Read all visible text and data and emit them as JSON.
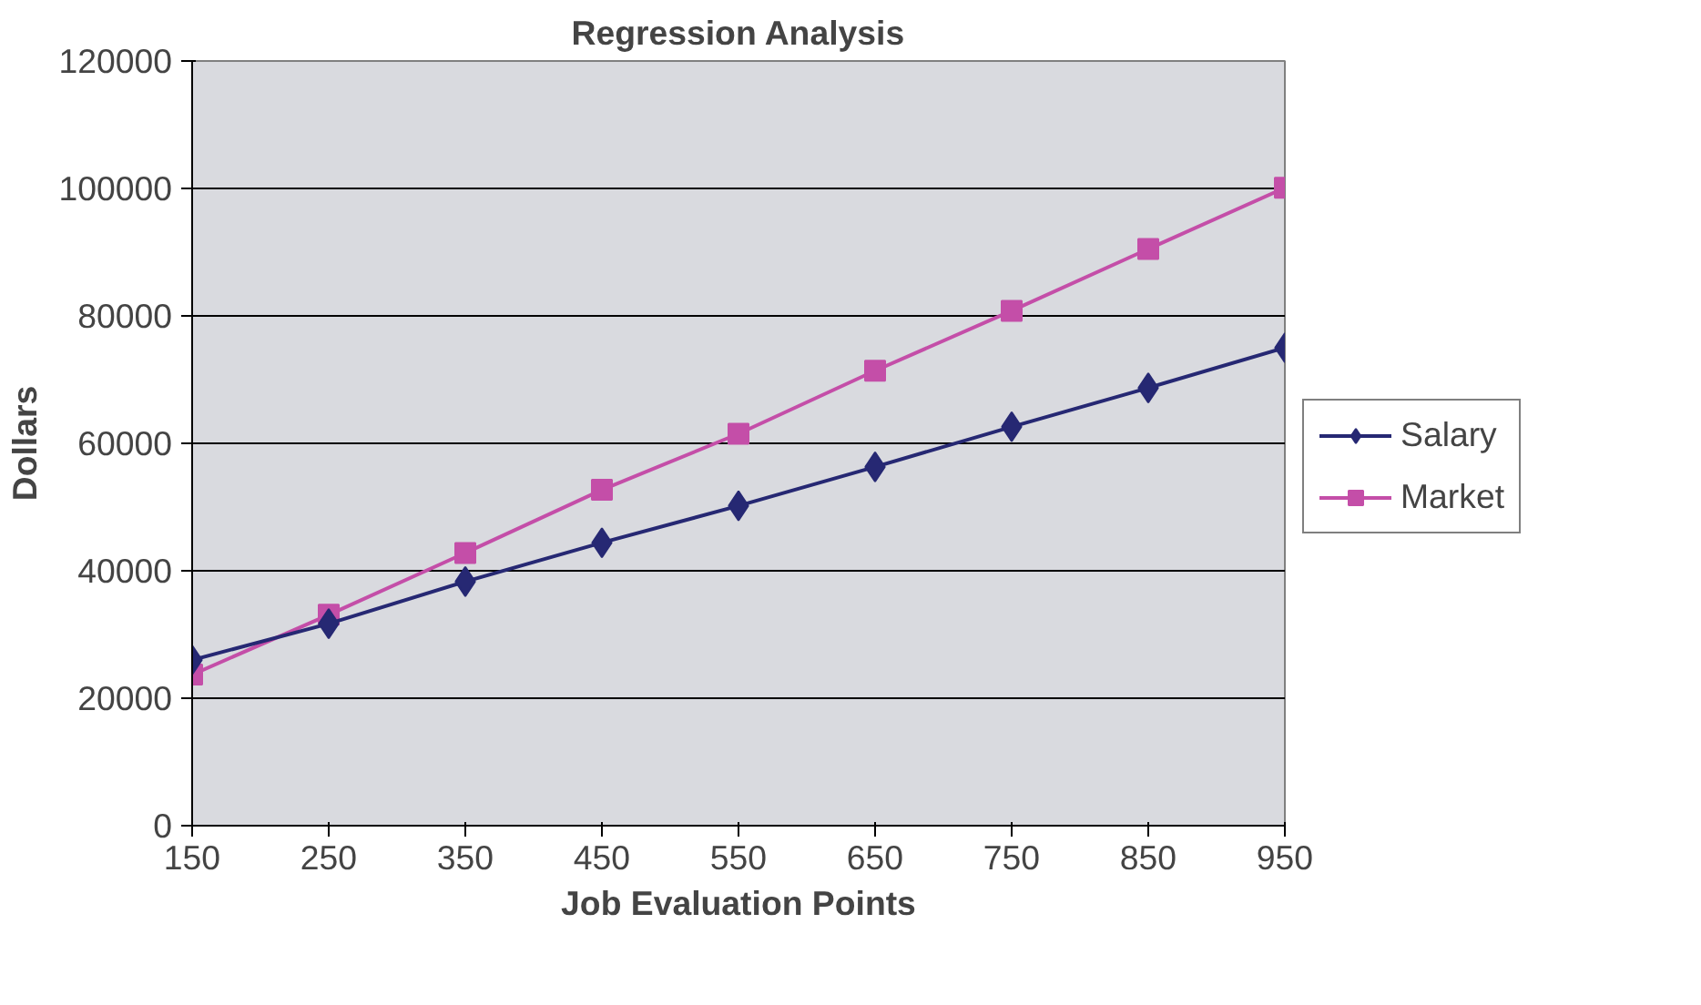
{
  "chart_data": {
    "type": "line",
    "title": "Regression Analysis",
    "xlabel": "Job Evaluation Points",
    "ylabel": "Dollars",
    "x": [
      150,
      250,
      350,
      450,
      550,
      650,
      750,
      850,
      950
    ],
    "series": [
      {
        "name": "Salary",
        "color": "#262873",
        "marker": "diamond",
        "values": [
          26000,
          31700,
          38300,
          44400,
          50200,
          56300,
          62600,
          68700,
          75000
        ]
      },
      {
        "name": "Market",
        "color": "#c44ea8",
        "marker": "square",
        "values": [
          23700,
          33100,
          42800,
          52700,
          61500,
          71400,
          80800,
          90500,
          100100
        ]
      }
    ],
    "xlim": [
      150,
      950
    ],
    "xticks": [
      150,
      250,
      350,
      450,
      550,
      650,
      750,
      850,
      950
    ],
    "ylim": [
      0,
      120000
    ],
    "yticks": [
      0,
      20000,
      40000,
      60000,
      80000,
      100000,
      120000
    ],
    "grid": "y",
    "legend": "right",
    "line_style": "solid"
  }
}
